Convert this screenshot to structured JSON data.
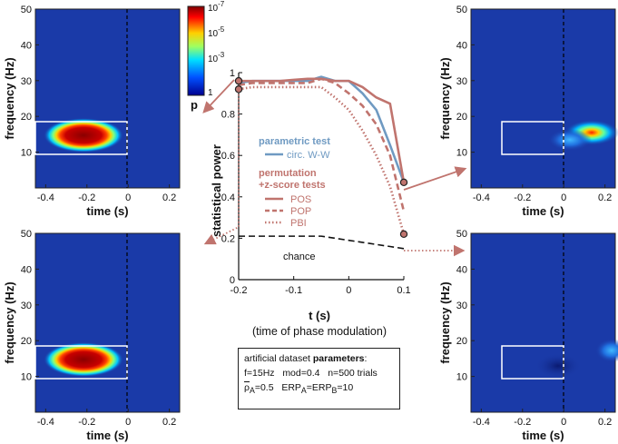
{
  "colorbar": {
    "ticks": [
      "10",
      "10",
      "10",
      "1"
    ],
    "exps": [
      "-7",
      "-5",
      "-3",
      ""
    ],
    "label": "p"
  },
  "spectrograms": {
    "xlabel": "time (s)",
    "ylabel": "frequency (Hz)",
    "xticks": [
      "-0.4",
      "-0.2",
      "0",
      "0.2"
    ],
    "yticks": [
      "50",
      "40",
      "30",
      "20",
      "10"
    ],
    "panels": [
      {
        "id": "top-left",
        "ylim": [
          0,
          50
        ],
        "xlim": [
          -0.45,
          0.25
        ],
        "effect": "strong",
        "box_window": [
          -0.45,
          0,
          11,
          19
        ]
      },
      {
        "id": "bottom-left",
        "ylim": [
          0,
          50
        ],
        "xlim": [
          -0.45,
          0.25
        ],
        "effect": "strong",
        "box_window": [
          -0.45,
          0,
          11,
          19
        ]
      },
      {
        "id": "top-right",
        "ylim": [
          0,
          50
        ],
        "xlim": [
          -0.45,
          0.25
        ],
        "effect": "moderate",
        "box_window": [
          -0.3,
          0,
          11,
          19
        ]
      },
      {
        "id": "bottom-right",
        "ylim": [
          0,
          50
        ],
        "xlim": [
          -0.45,
          0.25
        ],
        "effect": "weak",
        "box_window": [
          -0.3,
          0,
          11,
          19
        ]
      }
    ]
  },
  "chart_data": {
    "type": "line",
    "title": "",
    "xlabel": "t (s)",
    "xlabel_note": "(time of phase modulation)",
    "ylabel": "statistical power",
    "xlim": [
      -0.2,
      0.1
    ],
    "ylim": [
      0,
      1
    ],
    "xticks": [
      "-0.2",
      "-0.1",
      "0",
      "0.1"
    ],
    "yticks": [
      "0",
      "0.2",
      "0.4",
      "0.6",
      "0.8",
      "1"
    ],
    "x": [
      -0.2,
      -0.175,
      -0.15,
      -0.125,
      -0.1,
      -0.075,
      -0.05,
      -0.025,
      0,
      0.025,
      0.05,
      0.075,
      0.1
    ],
    "series": [
      {
        "name": "circ. W-W",
        "group": "parametric test",
        "color": "#6f9ac2",
        "style": "solid",
        "values": [
          0.95,
          0.96,
          0.96,
          0.96,
          0.96,
          0.96,
          0.98,
          0.96,
          0.96,
          0.9,
          0.82,
          0.65,
          0.47
        ]
      },
      {
        "name": "POS",
        "group": "permutation +z-score tests",
        "color": "#c0746e",
        "style": "solid",
        "values": [
          0.96,
          0.96,
          0.96,
          0.96,
          0.965,
          0.97,
          0.97,
          0.96,
          0.96,
          0.93,
          0.88,
          0.85,
          0.47
        ]
      },
      {
        "name": "POP",
        "group": "permutation +z-score tests",
        "color": "#c0746e",
        "style": "dashed",
        "values": [
          0.94,
          0.95,
          0.95,
          0.95,
          0.95,
          0.95,
          0.97,
          0.95,
          0.9,
          0.84,
          0.75,
          0.6,
          0.33
        ]
      },
      {
        "name": "PBI",
        "group": "permutation +z-score tests",
        "color": "#c0746e",
        "style": "dotted",
        "values": [
          0.92,
          0.93,
          0.93,
          0.93,
          0.93,
          0.93,
          0.93,
          0.88,
          0.82,
          0.72,
          0.6,
          0.45,
          0.22
        ]
      },
      {
        "name": "chance",
        "group": "",
        "color": "#111111",
        "style": "dashed",
        "values": [
          0.21,
          0.21,
          0.21,
          0.21,
          0.21,
          0.21,
          0.21,
          0.2,
          0.19,
          0.18,
          0.17,
          0.16,
          0.15
        ]
      }
    ],
    "legend": {
      "parametric_title": "parametric test",
      "parametric_items": [
        "circ. W-W"
      ],
      "permutation_title_1": "permutation",
      "permutation_title_2": "+z-score tests",
      "permutation_items": [
        "POS",
        "POP",
        "PBI"
      ],
      "chance_label": "chance"
    }
  },
  "params": {
    "title_prefix": "artificial dataset ",
    "title_bold": "parameters",
    "title_suffix": ":",
    "line1": "f=15Hz   mod=0.4   n=500 trials",
    "rho_symbol": "ρ",
    "rho_sub": "A",
    "rho_val": "=0.5",
    "erp_a": "ERP",
    "erp_a_sub": "A",
    "erp_b": "=ERP",
    "erp_b_sub": "B",
    "erp_val": "=10"
  },
  "colors": {
    "accent": "#c0746e",
    "blue": "#6f9ac2",
    "spectro_bg": "#1a3aa8"
  }
}
